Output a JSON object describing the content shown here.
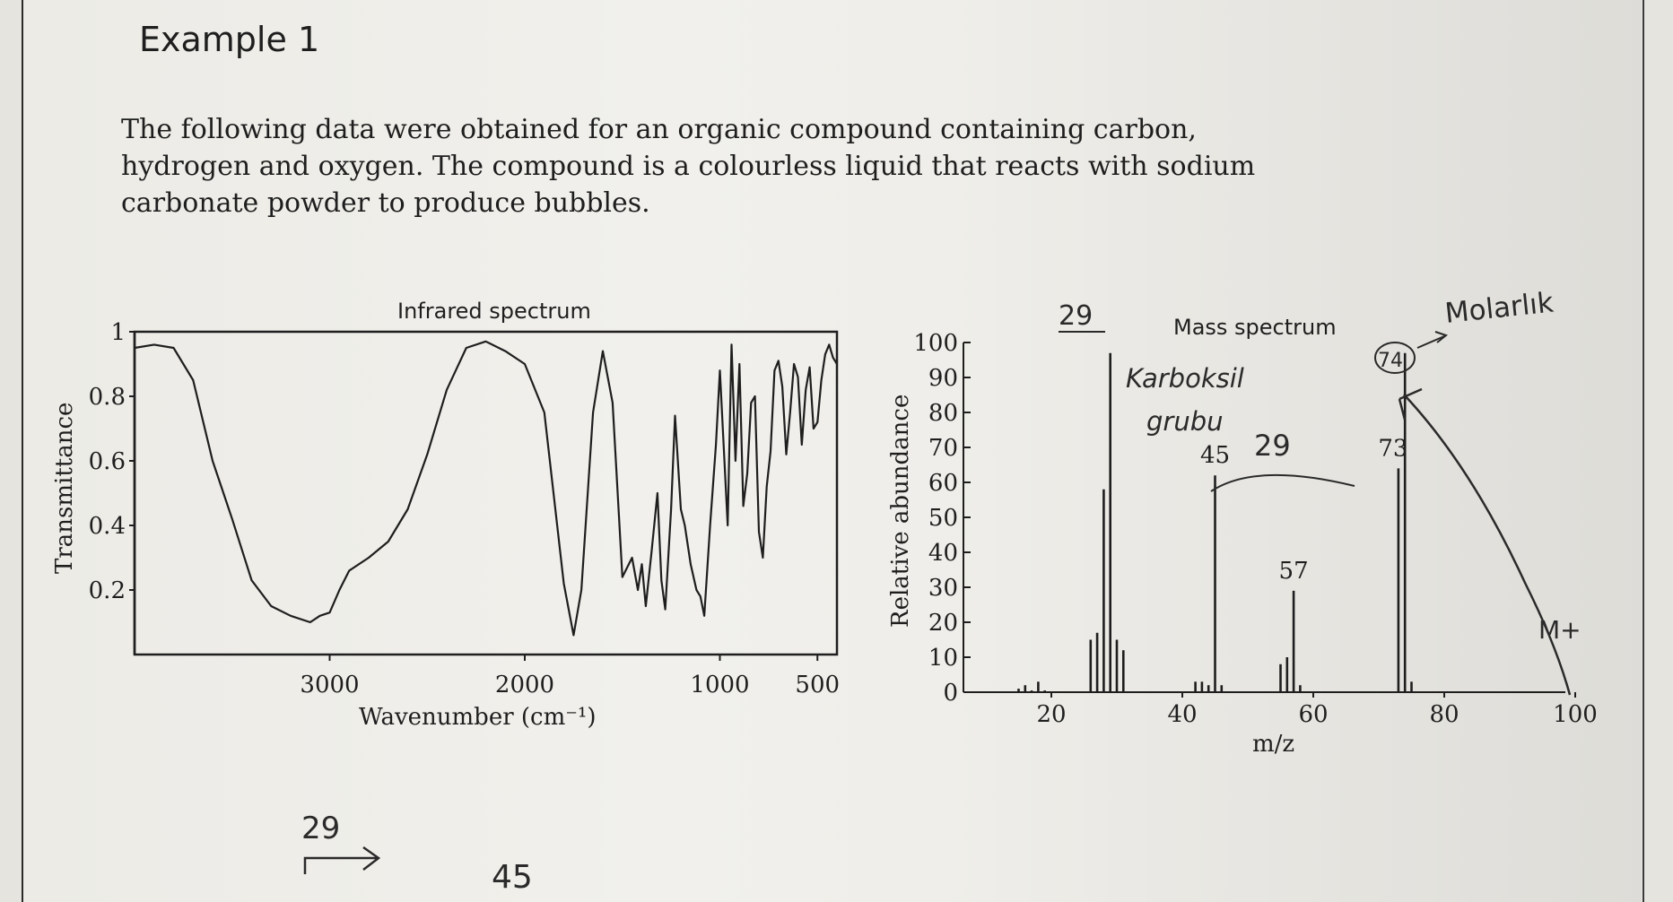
{
  "heading": "Example 1",
  "paragraph": [
    "The following data were obtained for an organic compound containing carbon,",
    "hydrogen and oxygen. The compound is a colourless liquid that reacts with sodium",
    "carbonate powder to produce bubbles."
  ],
  "chart_data": [
    {
      "type": "line",
      "title": "Infrared spectrum",
      "xlabel": "Wavenumber (cm⁻¹)",
      "ylabel": "Transmittance",
      "x_ticks": [
        "3000",
        "2000",
        "1000",
        "500"
      ],
      "y_ticks": [
        "1",
        "0.8",
        "0.6",
        "0.4",
        "0.2"
      ],
      "xlim": [
        4000,
        400
      ],
      "ylim": [
        0,
        1
      ],
      "x": [
        4000,
        3900,
        3800,
        3700,
        3600,
        3500,
        3400,
        3300,
        3200,
        3100,
        3050,
        3000,
        2950,
        2900,
        2800,
        2700,
        2600,
        2500,
        2400,
        2300,
        2200,
        2100,
        2000,
        1900,
        1800,
        1750,
        1710,
        1650,
        1600,
        1550,
        1500,
        1450,
        1420,
        1400,
        1380,
        1350,
        1320,
        1300,
        1280,
        1250,
        1230,
        1200,
        1180,
        1150,
        1120,
        1100,
        1080,
        1050,
        1020,
        1000,
        960,
        940,
        920,
        900,
        880,
        860,
        840,
        820,
        800,
        780,
        760,
        740,
        720,
        700,
        680,
        660,
        640,
        620,
        600,
        580,
        560,
        540,
        520,
        500,
        480,
        460,
        440,
        420,
        400
      ],
      "y": [
        0.95,
        0.96,
        0.95,
        0.85,
        0.6,
        0.42,
        0.23,
        0.15,
        0.12,
        0.1,
        0.12,
        0.13,
        0.2,
        0.26,
        0.3,
        0.35,
        0.45,
        0.62,
        0.82,
        0.95,
        0.97,
        0.94,
        0.9,
        0.75,
        0.22,
        0.06,
        0.2,
        0.75,
        0.94,
        0.78,
        0.24,
        0.3,
        0.2,
        0.28,
        0.15,
        0.32,
        0.5,
        0.23,
        0.14,
        0.45,
        0.74,
        0.45,
        0.4,
        0.28,
        0.2,
        0.18,
        0.12,
        0.4,
        0.65,
        0.88,
        0.4,
        0.96,
        0.6,
        0.9,
        0.46,
        0.56,
        0.78,
        0.8,
        0.38,
        0.3,
        0.52,
        0.63,
        0.88,
        0.91,
        0.83,
        0.62,
        0.75,
        0.9,
        0.86,
        0.65,
        0.82,
        0.89,
        0.7,
        0.72,
        0.85,
        0.93,
        0.96,
        0.92,
        0.9
      ],
      "grid": false
    },
    {
      "type": "bar",
      "title": "Mass spectrum",
      "xlabel": "m/z",
      "ylabel": "Relative abundance",
      "x_ticks": [
        "20",
        "40",
        "60",
        "80",
        "100"
      ],
      "y_ticks": [
        "100",
        "90",
        "80",
        "70",
        "60",
        "50",
        "40",
        "30",
        "20",
        "10",
        "0"
      ],
      "xlim": [
        10,
        100
      ],
      "ylim": [
        0,
        100
      ],
      "x": [
        15,
        16,
        17,
        18,
        19,
        26,
        27,
        28,
        29,
        30,
        31,
        42,
        43,
        44,
        45,
        46,
        55,
        56,
        57,
        58,
        73,
        74,
        75
      ],
      "values": [
        1,
        2,
        0.5,
        3,
        0.5,
        15,
        17,
        58,
        97,
        15,
        12,
        3,
        3,
        2,
        62,
        2,
        8,
        10,
        29,
        2,
        64,
        97,
        3
      ],
      "peak_labels": [
        "45",
        "57",
        "73"
      ],
      "grid": false
    }
  ],
  "annotations": {
    "ms_29_top": "29",
    "carboxyl_line1": "Karboksil",
    "carboxyl_line2": "grubu",
    "ms_29_mid": "29",
    "circled_74": "74",
    "molecular": "Molarlık",
    "m_plus": "M+",
    "bottom_29": "29",
    "bottom_45": "45"
  }
}
